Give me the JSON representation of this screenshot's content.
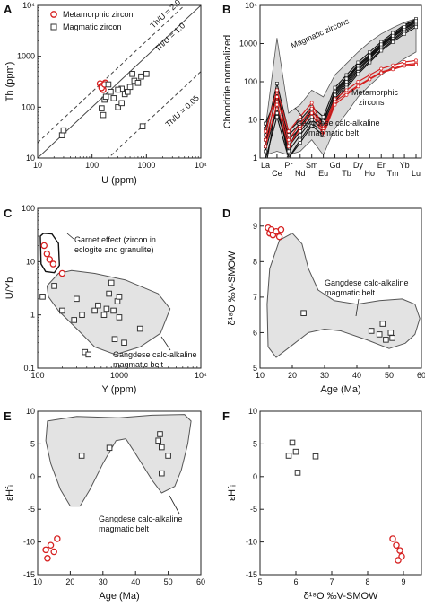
{
  "chart_data": [
    {
      "panel": "A",
      "type": "scatter",
      "xlabel": "U (ppm)",
      "ylabel": "Th (ppm)",
      "xscale": "log",
      "yscale": "log",
      "xlim": [
        10,
        10000
      ],
      "ylim": [
        10,
        10000
      ],
      "xticks": [
        "10",
        "100",
        "1000",
        "10⁴"
      ],
      "yticks": [
        "10",
        "100",
        "1000",
        "10⁴"
      ],
      "legend": [
        {
          "label": "Metamorphic zircon",
          "marker": "circle",
          "color": "#d62020"
        },
        {
          "label": "Magmatic zircon",
          "marker": "square",
          "color": "#333333"
        }
      ],
      "reference_lines": [
        {
          "label": "Th/U = 2.0",
          "ratio": 2.0,
          "style": "dashed"
        },
        {
          "label": "Th/U = 1.0",
          "ratio": 1.0,
          "style": "solid"
        },
        {
          "label": "Th/U = 0.05",
          "ratio": 0.05,
          "style": "dashed"
        }
      ],
      "series": [
        {
          "name": "Metamorphic zircon",
          "marker": "circle",
          "points": [
            [
              140,
              290
            ],
            [
              150,
              260
            ],
            [
              160,
              220
            ],
            [
              175,
              300
            ],
            [
              150,
              240
            ],
            [
              170,
              280
            ]
          ]
        },
        {
          "name": "Magmatic zircon",
          "marker": "square",
          "points": [
            [
              28,
              28
            ],
            [
              30,
              35
            ],
            [
              150,
              95
            ],
            [
              160,
              70
            ],
            [
              170,
              140
            ],
            [
              180,
              160
            ],
            [
              200,
              280
            ],
            [
              220,
              200
            ],
            [
              250,
              150
            ],
            [
              300,
              100
            ],
            [
              350,
              120
            ],
            [
              350,
              230
            ],
            [
              400,
              180
            ],
            [
              450,
              200
            ],
            [
              500,
              250
            ],
            [
              550,
              450
            ],
            [
              600,
              330
            ],
            [
              700,
              300
            ],
            [
              800,
              400
            ],
            [
              850,
              42
            ],
            [
              1000,
              450
            ],
            [
              300,
              220
            ]
          ]
        }
      ]
    },
    {
      "panel": "B",
      "type": "line",
      "xlabel": "",
      "ylabel": "Chondrite normalized",
      "yscale": "log",
      "ylim": [
        1,
        10000
      ],
      "categories": [
        "La",
        "Ce",
        "Pr",
        "Nd",
        "Sm",
        "Eu",
        "Gd",
        "Tb",
        "Dy",
        "Ho",
        "Er",
        "Tm",
        "Yb",
        "Lu"
      ],
      "yticks": [
        "1",
        "10",
        "100",
        "1000",
        "10⁴"
      ],
      "annotations": [
        "Magmatic zircons",
        "Metamorphic zircons",
        "Gangdese calc-alkaline magmatic belt"
      ],
      "series": [
        {
          "name": "Magmatic zircon",
          "values": [
            [
              2,
              60,
              3,
              6,
              15,
              10,
              50,
              110,
              250,
              450,
              900,
              1500,
              2500,
              3800
            ],
            [
              0.5,
              30,
              1,
              3,
              8,
              5,
              40,
              90,
              200,
              400,
              800,
              1300,
              2200,
              3200
            ],
            [
              8,
              40,
              4,
              8,
              18,
              8,
              60,
              130,
              280,
              520,
              1000,
              1700,
              2900,
              4200
            ],
            [
              1.5,
              20,
              1.5,
              4,
              10,
              6,
              35,
              80,
              180,
              350,
              700,
              1200,
              2000,
              3000
            ],
            [
              4,
              90,
              5,
              10,
              22,
              12,
              70,
              150,
              320,
              600,
              1100,
              1900,
              3100,
              4400
            ],
            [
              3,
              15,
              2,
              5,
              12,
              7,
              45,
              100,
              220,
              420,
              850,
              1450,
              2400,
              3500
            ],
            [
              6,
              50,
              2,
              7,
              16,
              9,
              55,
              120,
              260,
              480,
              950,
              1600,
              2700,
              3900
            ],
            [
              0.9,
              12,
              1,
              2.5,
              7,
              4,
              30,
              70,
              160,
              320,
              650,
              1100,
              1800,
              2700
            ]
          ]
        },
        {
          "name": "Metamorphic zircon",
          "values": [
            [
              3,
              40,
              3,
              8,
              20,
              5,
              30,
              50,
              80,
              120,
              180,
              220,
              280,
              300
            ],
            [
              5,
              60,
              5,
              12,
              28,
              6,
              35,
              60,
              100,
              150,
              220,
              270,
              330,
              360
            ],
            [
              2,
              25,
              2,
              6,
              15,
              4,
              25,
              45,
              75,
              115,
              170,
              210,
              260,
              280
            ]
          ]
        },
        {
          "name": "Gangdese calc-alkaline magmatic belt",
          "band_upper": [
            6,
            1400,
            15,
            25,
            60,
            40,
            150,
            300,
            600,
            1100,
            1800,
            2600,
            3600,
            4500
          ],
          "band_lower": [
            1.2,
            1.5,
            1.2,
            1.5,
            3,
            1.2,
            6,
            15,
            40,
            80,
            150,
            250,
            400,
            600
          ]
        }
      ]
    },
    {
      "panel": "C",
      "type": "scatter",
      "xlabel": "Y (ppm)",
      "ylabel": "U/Yb",
      "xscale": "log",
      "yscale": "log",
      "xlim": [
        100,
        10000
      ],
      "ylim": [
        0.1,
        100
      ],
      "xticks": [
        "100",
        "1000",
        "10⁴"
      ],
      "yticks": [
        "0.1",
        "1",
        "10",
        "100"
      ],
      "annotations": [
        "Garnet effect (zircon in eclogite and granulite)",
        "Gangdese calc-alkaline magmatic belt"
      ],
      "series": [
        {
          "name": "Metamorphic zircon",
          "marker": "circle",
          "points": [
            [
              120,
              20
            ],
            [
              130,
              14
            ],
            [
              140,
              11
            ],
            [
              155,
              9
            ],
            [
              200,
              6
            ]
          ]
        },
        {
          "name": "Magmatic zircon",
          "marker": "square",
          "points": [
            [
              115,
              2.2
            ],
            [
              160,
              3.5
            ],
            [
              200,
              1.2
            ],
            [
              280,
              0.8
            ],
            [
              300,
              2
            ],
            [
              350,
              1
            ],
            [
              380,
              0.2
            ],
            [
              420,
              0.18
            ],
            [
              500,
              1.2
            ],
            [
              550,
              1.5
            ],
            [
              650,
              1.0
            ],
            [
              700,
              1.3
            ],
            [
              750,
              2.5
            ],
            [
              800,
              4
            ],
            [
              850,
              1.2
            ],
            [
              880,
              0.35
            ],
            [
              950,
              1.8
            ],
            [
              1000,
              0.9
            ],
            [
              1150,
              0.3
            ],
            [
              1800,
              0.55
            ],
            [
              1000,
              2.2
            ]
          ]
        }
      ]
    },
    {
      "panel": "D",
      "type": "scatter",
      "xlabel": "Age (Ma)",
      "ylabel": "δ¹⁸O ‰V-SMOW",
      "xlim": [
        10,
        60
      ],
      "ylim": [
        5,
        9.5
      ],
      "xticks": [
        "10",
        "20",
        "30",
        "40",
        "50",
        "60"
      ],
      "yticks": [
        "5",
        "6",
        "7",
        "8",
        "9"
      ],
      "annotations": [
        "Gangdese calc-alkaline magmatic belt"
      ],
      "series": [
        {
          "name": "Metamorphic zircon",
          "marker": "circle",
          "points": [
            [
              12.5,
              8.95
            ],
            [
              13,
              8.8
            ],
            [
              13.5,
              8.9
            ],
            [
              14,
              8.75
            ],
            [
              15,
              8.85
            ],
            [
              16,
              8.7
            ],
            [
              16.5,
              8.9
            ]
          ]
        },
        {
          "name": "Magmatic zircon",
          "marker": "square",
          "points": [
            [
              23.5,
              6.55
            ],
            [
              44.5,
              6.05
            ],
            [
              47,
              5.95
            ],
            [
              48,
              6.25
            ],
            [
              49,
              5.8
            ],
            [
              51,
              5.85
            ],
            [
              50.5,
              6.0
            ]
          ]
        }
      ]
    },
    {
      "panel": "E",
      "type": "scatter",
      "xlabel": "Age (Ma)",
      "ylabel": "εHfᵢ",
      "xlim": [
        10,
        60
      ],
      "ylim": [
        -15,
        10
      ],
      "xticks": [
        "10",
        "20",
        "30",
        "40",
        "50",
        "60"
      ],
      "yticks": [
        "-15",
        "-10",
        "-5",
        "0",
        "5",
        "10"
      ],
      "annotations": [
        "Gangdese calc-alkaline magmatic belt"
      ],
      "series": [
        {
          "name": "Metamorphic zircon",
          "marker": "circle",
          "points": [
            [
              12.5,
              -11.2
            ],
            [
              13,
              -12.5
            ],
            [
              14,
              -10.5
            ],
            [
              15,
              -11.5
            ],
            [
              16,
              -9.5
            ]
          ]
        },
        {
          "name": "Magmatic zircon",
          "marker": "square",
          "points": [
            [
              23.5,
              3.2
            ],
            [
              32,
              4.4
            ],
            [
              47,
              5.5
            ],
            [
              47.5,
              6.5
            ],
            [
              48,
              4.5
            ],
            [
              48,
              0.5
            ],
            [
              50,
              3.2
            ]
          ]
        }
      ]
    },
    {
      "panel": "F",
      "type": "scatter",
      "xlabel": "δ¹⁸O ‰V-SMOW",
      "ylabel": "εHfᵢ",
      "xlim": [
        5,
        9.5
      ],
      "ylim": [
        -15,
        10
      ],
      "xticks": [
        "5",
        "6",
        "7",
        "8",
        "9"
      ],
      "yticks": [
        "-15",
        "-10",
        "-5",
        "0",
        "5",
        "10"
      ],
      "series": [
        {
          "name": "Metamorphic zircon",
          "marker": "circle",
          "points": [
            [
              8.7,
              -9.5
            ],
            [
              8.8,
              -10.5
            ],
            [
              8.9,
              -11.3
            ],
            [
              8.95,
              -12.2
            ],
            [
              8.85,
              -12.8
            ]
          ]
        },
        {
          "name": "Magmatic zircon",
          "marker": "square",
          "points": [
            [
              5.8,
              3.2
            ],
            [
              5.9,
              5.2
            ],
            [
              6.0,
              3.8
            ],
            [
              6.05,
              0.6
            ],
            [
              6.55,
              3.1
            ]
          ]
        }
      ]
    }
  ],
  "colors": {
    "metamorphic": "#d62020",
    "magmatic": "#333333",
    "belt_fill": "#e3e3e3",
    "belt_stroke": "#555555"
  }
}
